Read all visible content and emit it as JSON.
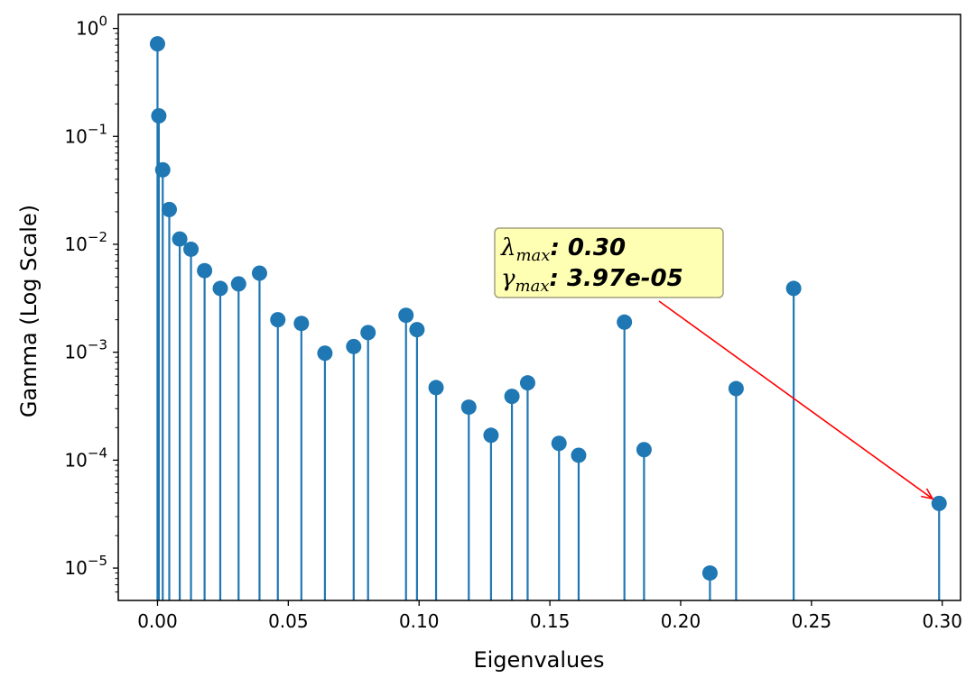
{
  "chart_data": {
    "type": "stem",
    "xlabel": "Eigenvalues",
    "ylabel": "Gamma (Log Scale)",
    "y_scale": "log",
    "xlim": [
      -0.015,
      0.307
    ],
    "ylim_log10": [
      -5.3,
      0.13
    ],
    "x_ticks": [
      0.0,
      0.05,
      0.1,
      0.15,
      0.2,
      0.25,
      0.3
    ],
    "x_tick_labels": [
      "0.00",
      "0.05",
      "0.10",
      "0.15",
      "0.20",
      "0.25",
      "0.30"
    ],
    "y_ticks_exponent": [
      0,
      -1,
      -2,
      -3,
      -4,
      -5
    ],
    "y_tick_base": "10",
    "y_tick_exponents": [
      "0",
      "−1",
      "−2",
      "−3",
      "−4",
      "−5"
    ],
    "color": "#1f77b4",
    "points": [
      {
        "x": 0.0,
        "y": 0.72
      },
      {
        "x": 0.0005,
        "y": 0.155
      },
      {
        "x": 0.002,
        "y": 0.049
      },
      {
        "x": 0.0045,
        "y": 0.021
      },
      {
        "x": 0.0085,
        "y": 0.0112
      },
      {
        "x": 0.0128,
        "y": 0.009
      },
      {
        "x": 0.018,
        "y": 0.0057
      },
      {
        "x": 0.024,
        "y": 0.0039
      },
      {
        "x": 0.031,
        "y": 0.0043
      },
      {
        "x": 0.039,
        "y": 0.0054
      },
      {
        "x": 0.046,
        "y": 0.002
      },
      {
        "x": 0.055,
        "y": 0.00185
      },
      {
        "x": 0.064,
        "y": 0.00098
      },
      {
        "x": 0.075,
        "y": 0.00113
      },
      {
        "x": 0.0805,
        "y": 0.00152
      },
      {
        "x": 0.095,
        "y": 0.0022
      },
      {
        "x": 0.0992,
        "y": 0.00162
      },
      {
        "x": 0.1065,
        "y": 0.00047
      },
      {
        "x": 0.119,
        "y": 0.00031
      },
      {
        "x": 0.1275,
        "y": 0.00017
      },
      {
        "x": 0.1355,
        "y": 0.00039
      },
      {
        "x": 0.1415,
        "y": 0.00052
      },
      {
        "x": 0.1535,
        "y": 0.000143
      },
      {
        "x": 0.161,
        "y": 0.000111
      },
      {
        "x": 0.1785,
        "y": 0.0019
      },
      {
        "x": 0.186,
        "y": 0.000125
      },
      {
        "x": 0.2112,
        "y": 9e-06
      },
      {
        "x": 0.2212,
        "y": 0.00046
      },
      {
        "x": 0.2432,
        "y": 0.0039
      },
      {
        "x": 0.2988,
        "y": 3.97e-05
      }
    ],
    "annotation": {
      "lambda_symbol": "λ",
      "gamma_symbol": "γ",
      "subscript": "max",
      "lambda_value": ": 0.30",
      "gamma_value": ": 3.97e-05",
      "box_color": "#ffffb3",
      "arrow_color": "#ff0000",
      "target_point_index": 29
    }
  }
}
